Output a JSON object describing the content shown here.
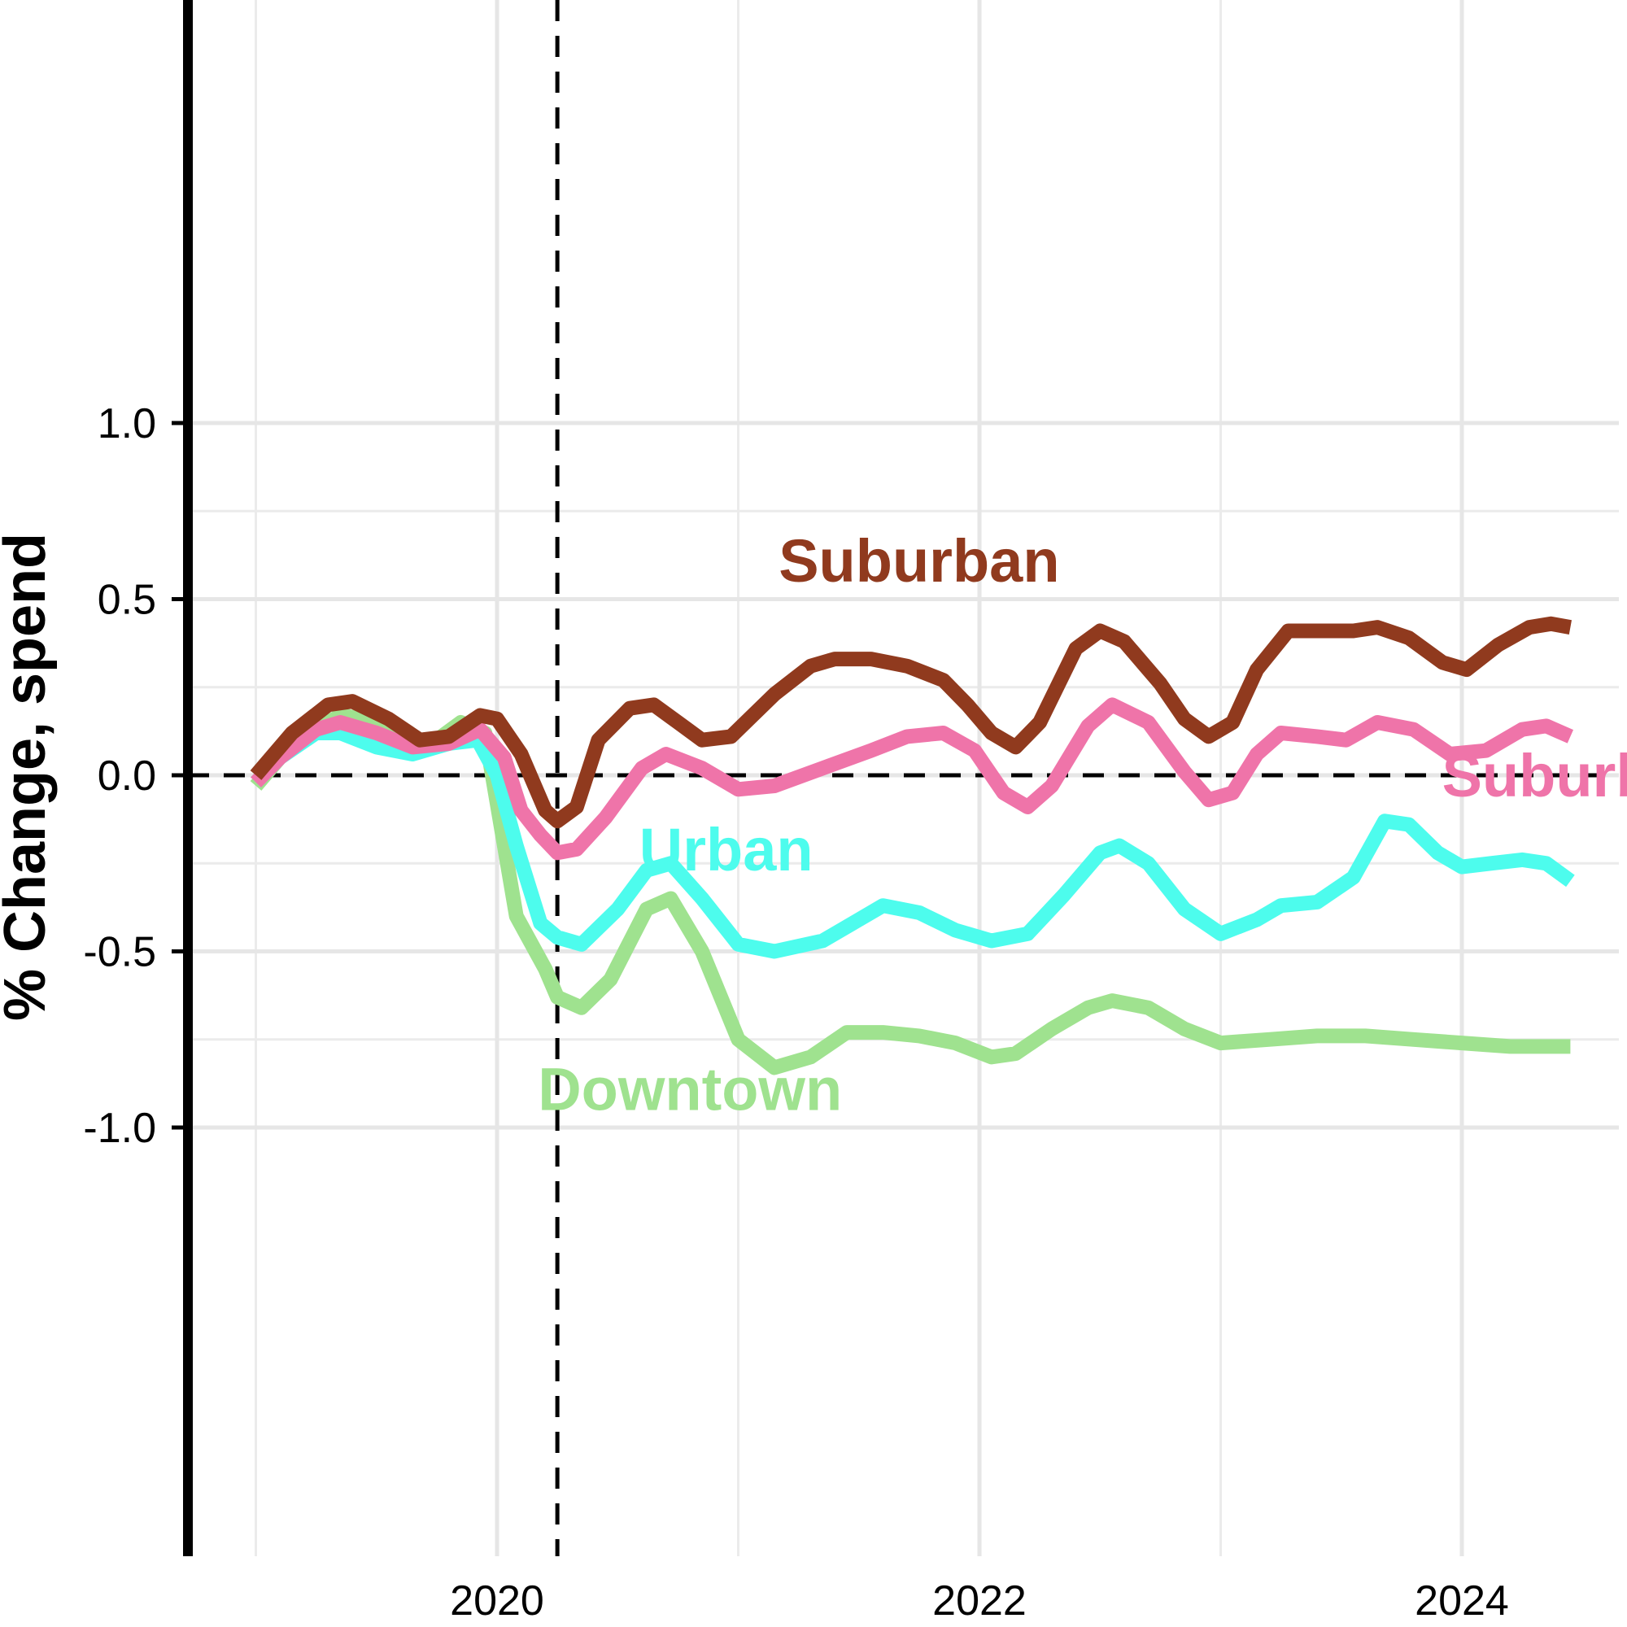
{
  "chart_data": {
    "type": "line",
    "title": "",
    "xlabel": "",
    "ylabel": "% Change, spend",
    "xlim": [
      2018.8,
      2024.6
    ],
    "ylim": [
      -1.1,
      1.1
    ],
    "x_ticks": [
      2020,
      2022,
      2024
    ],
    "x_tick_labels": [
      "2020",
      "2022",
      "2024"
    ],
    "y_ticks": [
      -1.0,
      -0.5,
      0.0,
      0.5,
      1.0
    ],
    "y_tick_labels": [
      "-1.0",
      "-0.5",
      "0.0",
      "0.5",
      "1.0"
    ],
    "grid": true,
    "reference_lines": {
      "horizontal_y": 0.0,
      "vertical_x": 2020.25
    },
    "series": [
      {
        "name": "Downtown",
        "color": "#9fe28f",
        "label_pos": [
          2020.8,
          -0.95
        ],
        "points": [
          [
            2019.0,
            -0.03
          ],
          [
            2019.1,
            0.05
          ],
          [
            2019.25,
            0.13
          ],
          [
            2019.35,
            0.17
          ],
          [
            2019.45,
            0.16
          ],
          [
            2019.65,
            0.09
          ],
          [
            2019.75,
            0.1
          ],
          [
            2019.85,
            0.15
          ],
          [
            2019.95,
            0.12
          ],
          [
            2020.08,
            -0.4
          ],
          [
            2020.2,
            -0.55
          ],
          [
            2020.25,
            -0.63
          ],
          [
            2020.35,
            -0.66
          ],
          [
            2020.47,
            -0.58
          ],
          [
            2020.62,
            -0.38
          ],
          [
            2020.72,
            -0.35
          ],
          [
            2020.85,
            -0.5
          ],
          [
            2021.0,
            -0.75
          ],
          [
            2021.15,
            -0.83
          ],
          [
            2021.3,
            -0.8
          ],
          [
            2021.45,
            -0.73
          ],
          [
            2021.6,
            -0.73
          ],
          [
            2021.75,
            -0.74
          ],
          [
            2021.9,
            -0.76
          ],
          [
            2022.05,
            -0.8
          ],
          [
            2022.15,
            -0.79
          ],
          [
            2022.3,
            -0.72
          ],
          [
            2022.45,
            -0.66
          ],
          [
            2022.55,
            -0.64
          ],
          [
            2022.7,
            -0.66
          ],
          [
            2022.85,
            -0.72
          ],
          [
            2023.0,
            -0.76
          ],
          [
            2023.2,
            -0.75
          ],
          [
            2023.4,
            -0.74
          ],
          [
            2023.6,
            -0.74
          ],
          [
            2023.8,
            -0.75
          ],
          [
            2024.0,
            -0.76
          ],
          [
            2024.2,
            -0.77
          ],
          [
            2024.45,
            -0.77
          ]
        ]
      },
      {
        "name": "Urban",
        "color": "#4dfced",
        "label_pos": [
          2020.95,
          -0.27
        ],
        "points": [
          [
            2019.0,
            -0.02
          ],
          [
            2019.1,
            0.05
          ],
          [
            2019.25,
            0.12
          ],
          [
            2019.35,
            0.12
          ],
          [
            2019.5,
            0.08
          ],
          [
            2019.65,
            0.06
          ],
          [
            2019.8,
            0.09
          ],
          [
            2019.92,
            0.1
          ],
          [
            2020.0,
            0.0
          ],
          [
            2020.08,
            -0.2
          ],
          [
            2020.18,
            -0.42
          ],
          [
            2020.25,
            -0.46
          ],
          [
            2020.35,
            -0.48
          ],
          [
            2020.5,
            -0.38
          ],
          [
            2020.62,
            -0.27
          ],
          [
            2020.72,
            -0.25
          ],
          [
            2020.85,
            -0.35
          ],
          [
            2021.0,
            -0.48
          ],
          [
            2021.15,
            -0.5
          ],
          [
            2021.35,
            -0.47
          ],
          [
            2021.5,
            -0.41
          ],
          [
            2021.6,
            -0.37
          ],
          [
            2021.75,
            -0.39
          ],
          [
            2021.9,
            -0.44
          ],
          [
            2022.05,
            -0.47
          ],
          [
            2022.2,
            -0.45
          ],
          [
            2022.35,
            -0.34
          ],
          [
            2022.5,
            -0.22
          ],
          [
            2022.58,
            -0.2
          ],
          [
            2022.7,
            -0.25
          ],
          [
            2022.85,
            -0.38
          ],
          [
            2023.0,
            -0.45
          ],
          [
            2023.15,
            -0.41
          ],
          [
            2023.25,
            -0.37
          ],
          [
            2023.4,
            -0.36
          ],
          [
            2023.55,
            -0.29
          ],
          [
            2023.68,
            -0.13
          ],
          [
            2023.78,
            -0.14
          ],
          [
            2023.9,
            -0.22
          ],
          [
            2024.0,
            -0.26
          ],
          [
            2024.12,
            -0.25
          ],
          [
            2024.25,
            -0.24
          ],
          [
            2024.35,
            -0.25
          ],
          [
            2024.45,
            -0.3
          ]
        ]
      },
      {
        "name": "Suburban",
        "color": "#ef74a9",
        "label_pos": [
          2024.5,
          -0.06
        ],
        "points": [
          [
            2019.0,
            -0.02
          ],
          [
            2019.1,
            0.05
          ],
          [
            2019.25,
            0.13
          ],
          [
            2019.35,
            0.15
          ],
          [
            2019.5,
            0.12
          ],
          [
            2019.65,
            0.08
          ],
          [
            2019.8,
            0.09
          ],
          [
            2019.93,
            0.13
          ],
          [
            2020.03,
            0.05
          ],
          [
            2020.1,
            -0.1
          ],
          [
            2020.18,
            -0.17
          ],
          [
            2020.25,
            -0.22
          ],
          [
            2020.33,
            -0.21
          ],
          [
            2020.45,
            -0.12
          ],
          [
            2020.6,
            0.02
          ],
          [
            2020.7,
            0.06
          ],
          [
            2020.85,
            0.02
          ],
          [
            2021.0,
            -0.04
          ],
          [
            2021.15,
            -0.03
          ],
          [
            2021.35,
            0.02
          ],
          [
            2021.55,
            0.07
          ],
          [
            2021.7,
            0.11
          ],
          [
            2021.85,
            0.12
          ],
          [
            2021.98,
            0.07
          ],
          [
            2022.1,
            -0.05
          ],
          [
            2022.2,
            -0.09
          ],
          [
            2022.3,
            -0.03
          ],
          [
            2022.45,
            0.14
          ],
          [
            2022.55,
            0.2
          ],
          [
            2022.7,
            0.15
          ],
          [
            2022.85,
            0.01
          ],
          [
            2022.95,
            -0.07
          ],
          [
            2023.05,
            -0.05
          ],
          [
            2023.15,
            0.06
          ],
          [
            2023.25,
            0.12
          ],
          [
            2023.4,
            0.11
          ],
          [
            2023.52,
            0.1
          ],
          [
            2023.65,
            0.15
          ],
          [
            2023.8,
            0.13
          ],
          [
            2023.95,
            0.06
          ],
          [
            2024.1,
            0.07
          ],
          [
            2024.25,
            0.13
          ],
          [
            2024.35,
            0.14
          ],
          [
            2024.45,
            0.11
          ]
        ]
      },
      {
        "name": "Suburban",
        "color": "#903a1e",
        "label_pos": [
          2021.75,
          0.55
        ],
        "points": [
          [
            2019.0,
            0.0
          ],
          [
            2019.15,
            0.12
          ],
          [
            2019.3,
            0.2
          ],
          [
            2019.4,
            0.21
          ],
          [
            2019.55,
            0.16
          ],
          [
            2019.68,
            0.1
          ],
          [
            2019.8,
            0.11
          ],
          [
            2019.93,
            0.17
          ],
          [
            2020.0,
            0.16
          ],
          [
            2020.1,
            0.06
          ],
          [
            2020.2,
            -0.1
          ],
          [
            2020.25,
            -0.13
          ],
          [
            2020.33,
            -0.09
          ],
          [
            2020.42,
            0.1
          ],
          [
            2020.55,
            0.19
          ],
          [
            2020.65,
            0.2
          ],
          [
            2020.75,
            0.15
          ],
          [
            2020.85,
            0.1
          ],
          [
            2020.97,
            0.11
          ],
          [
            2021.15,
            0.23
          ],
          [
            2021.3,
            0.31
          ],
          [
            2021.4,
            0.33
          ],
          [
            2021.55,
            0.33
          ],
          [
            2021.7,
            0.31
          ],
          [
            2021.85,
            0.27
          ],
          [
            2021.95,
            0.2
          ],
          [
            2022.05,
            0.12
          ],
          [
            2022.15,
            0.08
          ],
          [
            2022.25,
            0.15
          ],
          [
            2022.4,
            0.36
          ],
          [
            2022.5,
            0.41
          ],
          [
            2022.6,
            0.38
          ],
          [
            2022.75,
            0.26
          ],
          [
            2022.85,
            0.16
          ],
          [
            2022.95,
            0.11
          ],
          [
            2023.05,
            0.15
          ],
          [
            2023.15,
            0.3
          ],
          [
            2023.28,
            0.41
          ],
          [
            2023.4,
            0.41
          ],
          [
            2023.55,
            0.41
          ],
          [
            2023.65,
            0.42
          ],
          [
            2023.78,
            0.39
          ],
          [
            2023.92,
            0.32
          ],
          [
            2024.02,
            0.3
          ],
          [
            2024.15,
            0.37
          ],
          [
            2024.28,
            0.42
          ],
          [
            2024.37,
            0.43
          ],
          [
            2024.45,
            0.42
          ]
        ]
      }
    ]
  }
}
